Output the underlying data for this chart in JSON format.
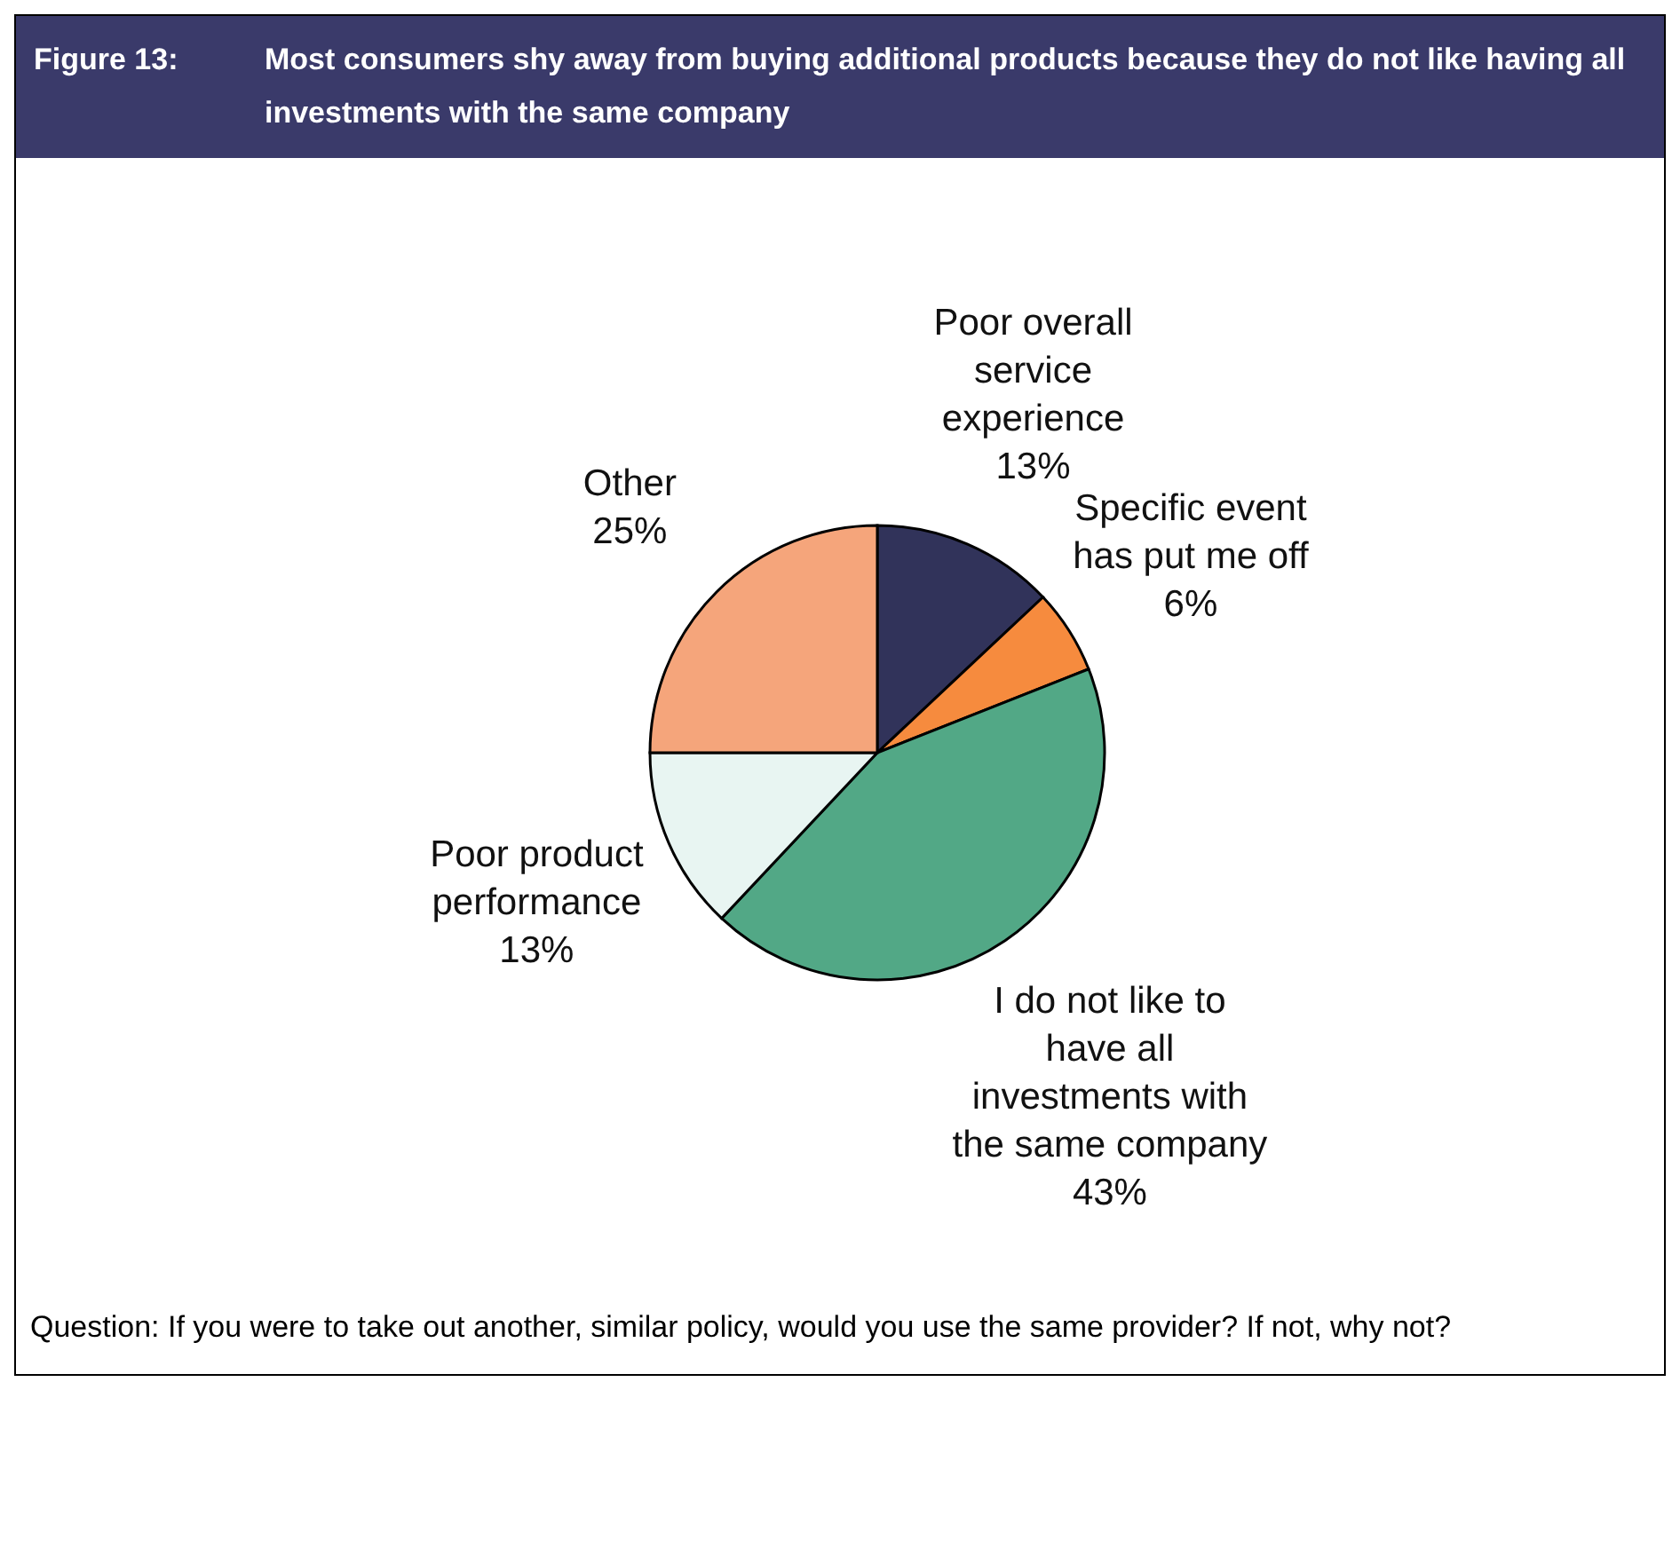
{
  "chart_data": {
    "type": "pie",
    "title": "Figure 13:",
    "subtitle": "Most consumers shy away from buying additional products because they do not like having all investments with the same company",
    "categories": [
      "Poor overall service experience",
      "Specific event has put me off",
      "I do not like to have all investments with the same company",
      "Poor product performance",
      "Other"
    ],
    "values": [
      13,
      6,
      43,
      13,
      25
    ],
    "value_labels": [
      "13%",
      "6%",
      "43%",
      "13%",
      "25%"
    ],
    "colors": [
      "#31335a",
      "#f68b3e",
      "#52a886",
      "#e8f5f2",
      "#f5a57b"
    ],
    "annotations": [
      "Question: If you were to take out another, similar policy, would you use the same provider? If not, why not?"
    ]
  }
}
